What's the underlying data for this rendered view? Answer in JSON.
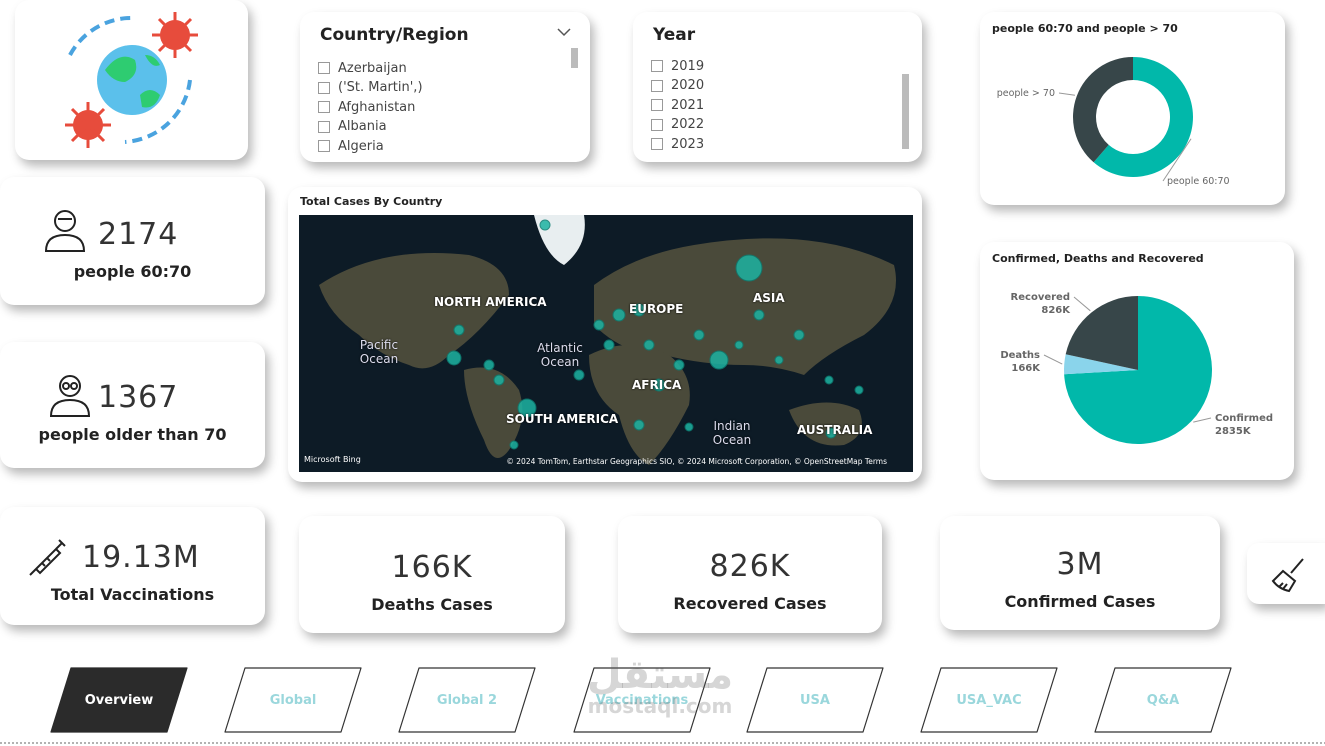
{
  "slicers": {
    "country": {
      "title": "Country/Region",
      "items": [
        "Azerbaijan",
        "('St. Martin',)",
        "Afghanistan",
        "Albania",
        "Algeria"
      ]
    },
    "year": {
      "title": "Year",
      "items": [
        "2019",
        "2020",
        "2021",
        "2022",
        "2023"
      ]
    }
  },
  "kpis": [
    {
      "value": "2174",
      "label": "people 60:70"
    },
    {
      "value": "1367",
      "label": "people older than 70"
    },
    {
      "value": "19.13M",
      "label": "Total Vaccinations"
    },
    {
      "value": "166K",
      "label": "Deaths Cases"
    },
    {
      "value": "826K",
      "label": "Recovered Cases"
    },
    {
      "value": "3M",
      "label": "Confirmed Cases"
    }
  ],
  "map": {
    "title": "Total Cases By Country",
    "labels": [
      "NORTH AMERICA",
      "EUROPE",
      "ASIA",
      "Pacific Ocean",
      "Atlantic Ocean",
      "AFRICA",
      "SOUTH AMERICA",
      "Indian Ocean",
      "AUSTRALIA"
    ],
    "logo": "Microsoft Bing",
    "attribution": "© 2024 TomTom, Earthstar Geographics SIO, © 2024 Microsoft Corporation, © OpenStreetMap Terms"
  },
  "chart_data": [
    {
      "type": "donut",
      "title": "people 60:70 and people > 70",
      "categories": [
        "people 60:70",
        "people > 70"
      ],
      "values": [
        2174,
        1367
      ],
      "colors": [
        "#01b8aa",
        "#374649"
      ]
    },
    {
      "type": "pie",
      "title": "Confirmed, Deaths and  Recovered",
      "categories": [
        "Confirmed",
        "Deaths",
        "Recovered"
      ],
      "values": [
        2835000,
        166000,
        826000
      ],
      "value_labels": [
        "2835K",
        "166K",
        "826K"
      ],
      "colors": [
        "#01b8aa",
        "#8ad4eb",
        "#374649"
      ]
    }
  ],
  "nav": [
    "Overview",
    "Global",
    "Global 2",
    "Vaccinations",
    "USA",
    "USA_VAC",
    "Q&A"
  ],
  "watermark": [
    "مستقل",
    "mostaql.com"
  ]
}
